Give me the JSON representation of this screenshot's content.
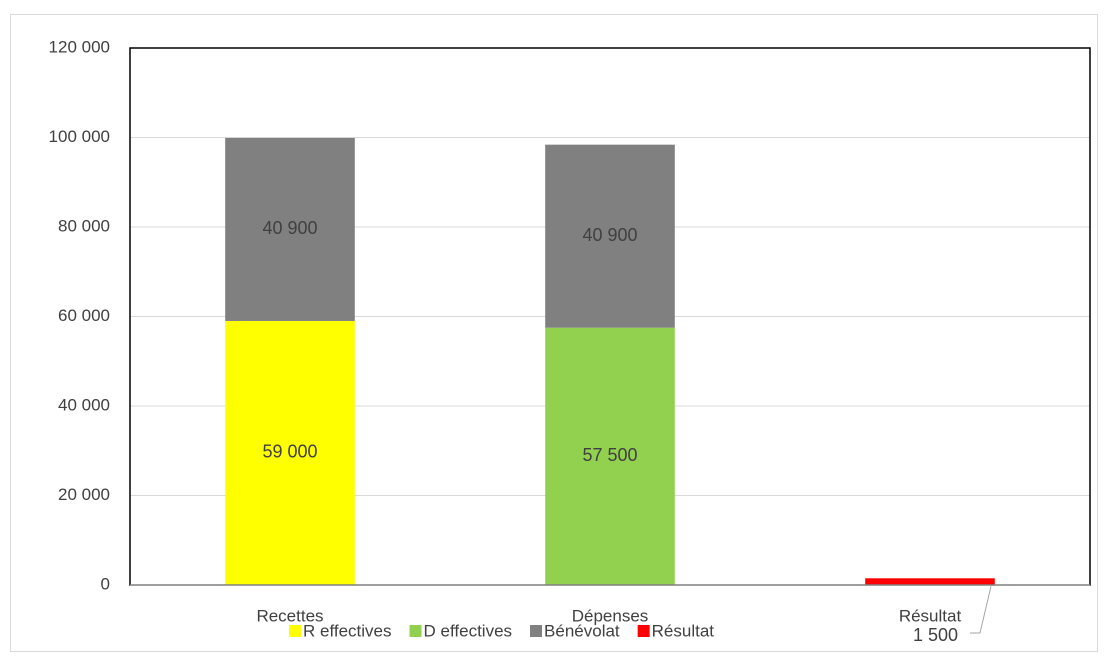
{
  "chart_data": {
    "type": "bar",
    "stacked": true,
    "categories": [
      "Recettes",
      "Dépenses",
      "Résultat"
    ],
    "series": [
      {
        "name": "R effectives",
        "color": "#ffff00",
        "values": [
          59000,
          null,
          null
        ],
        "value_labels": [
          "59 000",
          null,
          null
        ]
      },
      {
        "name": "D effectives",
        "color": "#92d050",
        "values": [
          null,
          57500,
          null
        ],
        "value_labels": [
          null,
          "57 500",
          null
        ]
      },
      {
        "name": "Bénévolat",
        "color": "#808080",
        "values": [
          40900,
          40900,
          null
        ],
        "value_labels": [
          "40 900",
          "40 900",
          null
        ]
      },
      {
        "name": "Résultat",
        "color": "#ff0000",
        "values": [
          null,
          null,
          1500
        ],
        "value_labels": [
          null,
          null,
          "1 500"
        ]
      }
    ],
    "ylim": [
      0,
      120000
    ],
    "yticks": [
      0,
      {
        "value": 20000,
        "label": "20 000"
      },
      {
        "value": 40000,
        "label": "40 000"
      },
      {
        "value": 60000,
        "label": "60 000"
      },
      {
        "value": 80000,
        "label": "80 000"
      },
      {
        "value": 100000,
        "label": "100 000"
      },
      {
        "value": 120000,
        "label": "120 000"
      }
    ],
    "grid": true,
    "legend": "bottom"
  }
}
